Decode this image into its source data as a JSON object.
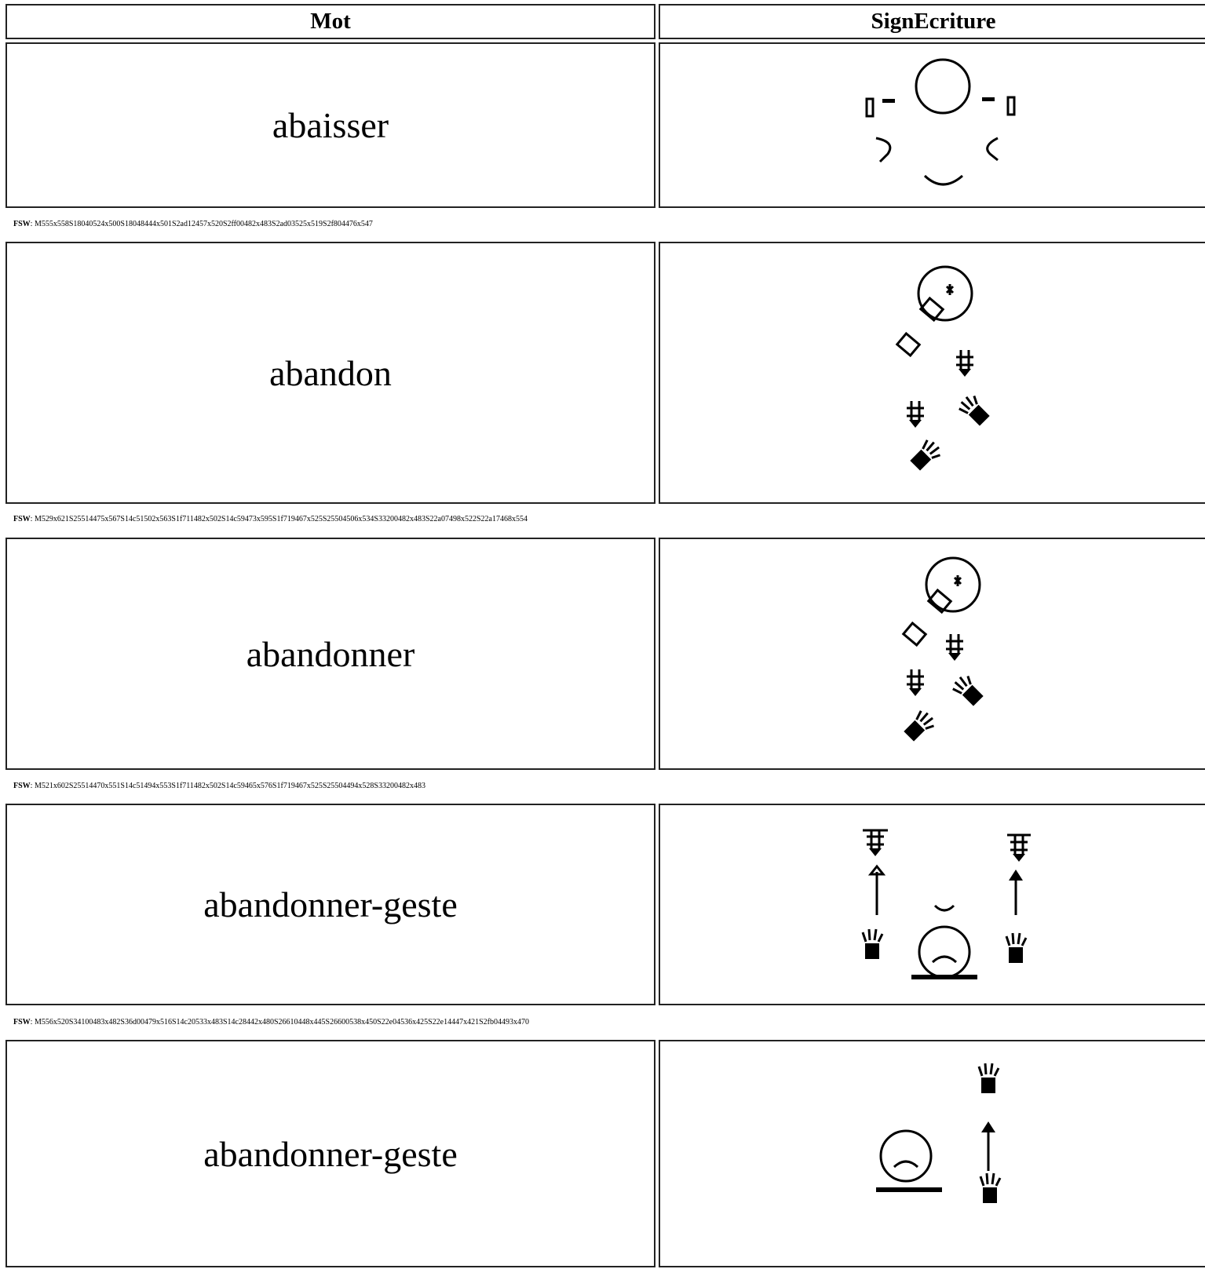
{
  "table": {
    "headers": [
      "Mot",
      "SignEcriture"
    ],
    "rows": [
      {
        "word": "abaisser",
        "fsw_label": "FSW",
        "fsw": ": M555x558S18040524x500S18048444x501S2ad12457x520S2ff00482x483S2ad03525x519S2f804476x547"
      },
      {
        "word": "abandon",
        "fsw_label": "FSW",
        "fsw": ": M529x621S25514475x567S14c51502x563S1f711482x502S14c59473x595S1f719467x525S25504506x534S33200482x483S22a07498x522S22a17468x554"
      },
      {
        "word": "abandonner",
        "fsw_label": "FSW",
        "fsw": ": M521x602S25514470x551S14c51494x553S1f711482x502S14c59465x576S1f719467x525S25504494x528S33200482x483"
      },
      {
        "word": "abandonner-geste",
        "fsw_label": "FSW",
        "fsw": ": M556x520S34100483x482S36d00479x516S14c20533x483S14c28442x480S26610448x445S26600538x450S22e04536x425S22e14447x421S2fb04493x470"
      },
      {
        "word": "abandonner-geste"
      }
    ]
  }
}
